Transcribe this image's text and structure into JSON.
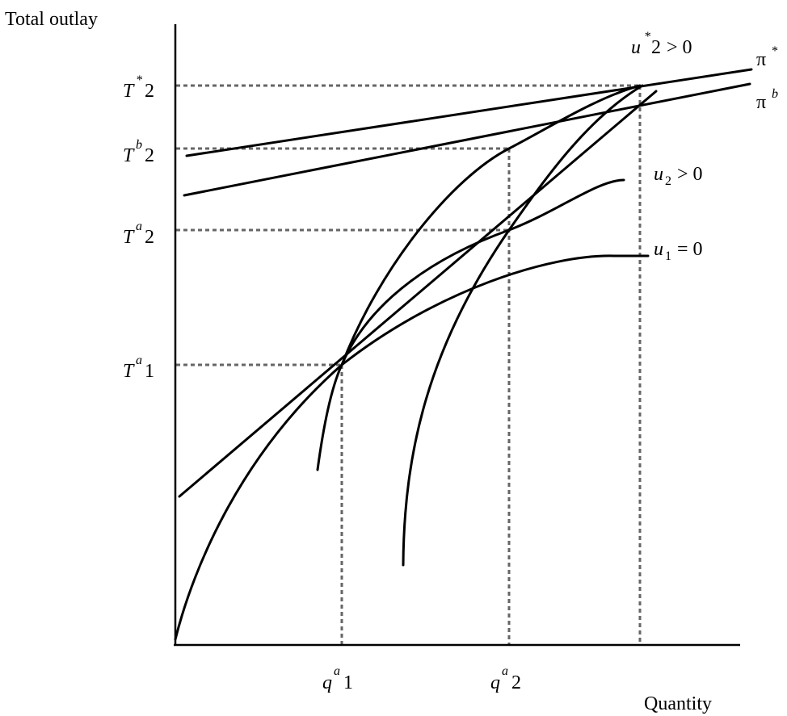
{
  "axes": {
    "y_label": "Total outlay",
    "x_label": "Quantity"
  },
  "y_ticks": [
    {
      "id": "t2star",
      "base": "T",
      "sup": "*",
      "sub": "2"
    },
    {
      "id": "t2b",
      "base": "T",
      "sup": "b",
      "sub": "2"
    },
    {
      "id": "t2a",
      "base": "T",
      "sup": "a",
      "sub": "2"
    },
    {
      "id": "t1a",
      "base": "T",
      "sup": "a",
      "sub": "1"
    }
  ],
  "x_ticks": [
    {
      "id": "q1a",
      "base": "q",
      "sup": "a",
      "sub": "1"
    },
    {
      "id": "q2a",
      "base": "q",
      "sup": "a",
      "sub": "2"
    }
  ],
  "curve_labels": {
    "u2star": {
      "base": "u",
      "sup": "*",
      "sub": "2",
      "rel": "> 0"
    },
    "u2": {
      "base": "u",
      "sub": "2",
      "rel": "> 0"
    },
    "u1": {
      "base": "u",
      "sub": "1",
      "rel": "= 0"
    },
    "pistar": {
      "base": "π",
      "sup": "*"
    },
    "pib": {
      "base": "π",
      "sup": "b"
    }
  }
}
